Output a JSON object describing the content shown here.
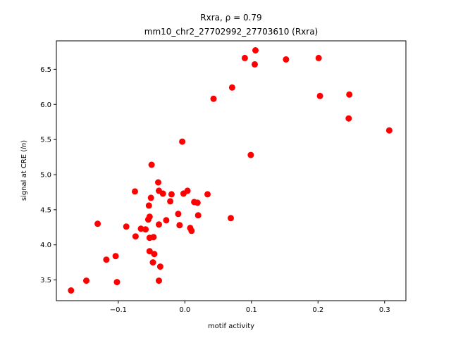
{
  "chart_data": {
    "type": "scatter",
    "title_line1_prefix": "Rxra, ",
    "title_line1_math": "ρ = 0.79",
    "title_line2": "mm10_chr2_27702992_27703610 (Rxra)",
    "xlabel": "motif activity",
    "ylabel_prefix": "signal at CRE (",
    "ylabel_italic": "ln",
    "ylabel_suffix": ")",
    "xlim": [
      -0.193,
      0.332
    ],
    "ylim": [
      3.205,
      6.905
    ],
    "xticks": [
      {
        "value": -0.1,
        "label": "−0.1"
      },
      {
        "value": 0.0,
        "label": "0.0"
      },
      {
        "value": 0.1,
        "label": "0.1"
      },
      {
        "value": 0.2,
        "label": "0.2"
      },
      {
        "value": 0.3,
        "label": "0.3"
      }
    ],
    "yticks": [
      {
        "value": 3.5,
        "label": "3.5"
      },
      {
        "value": 4.0,
        "label": "4.0"
      },
      {
        "value": 4.5,
        "label": "4.5"
      },
      {
        "value": 5.0,
        "label": "5.0"
      },
      {
        "value": 5.5,
        "label": "5.5"
      },
      {
        "value": 6.0,
        "label": "6.0"
      },
      {
        "value": 6.5,
        "label": "6.5"
      }
    ],
    "marker_color": "#ff0000",
    "grid": false,
    "points": [
      {
        "x": -0.171,
        "y": 3.35
      },
      {
        "x": -0.148,
        "y": 3.49
      },
      {
        "x": -0.102,
        "y": 3.47
      },
      {
        "x": -0.104,
        "y": 3.84
      },
      {
        "x": -0.118,
        "y": 3.79
      },
      {
        "x": -0.131,
        "y": 4.3
      },
      {
        "x": -0.088,
        "y": 4.26
      },
      {
        "x": -0.075,
        "y": 4.76
      },
      {
        "x": -0.074,
        "y": 4.12
      },
      {
        "x": -0.066,
        "y": 4.23
      },
      {
        "x": -0.059,
        "y": 4.22
      },
      {
        "x": -0.055,
        "y": 4.36
      },
      {
        "x": -0.054,
        "y": 4.56
      },
      {
        "x": -0.053,
        "y": 4.4
      },
      {
        "x": -0.053,
        "y": 4.1
      },
      {
        "x": -0.053,
        "y": 3.91
      },
      {
        "x": -0.051,
        "y": 4.67
      },
      {
        "x": -0.05,
        "y": 5.14
      },
      {
        "x": -0.048,
        "y": 3.75
      },
      {
        "x": -0.047,
        "y": 4.11
      },
      {
        "x": -0.046,
        "y": 3.87
      },
      {
        "x": -0.04,
        "y": 4.89
      },
      {
        "x": -0.039,
        "y": 4.77
      },
      {
        "x": -0.039,
        "y": 4.29
      },
      {
        "x": -0.039,
        "y": 3.49
      },
      {
        "x": -0.037,
        "y": 3.69
      },
      {
        "x": -0.033,
        "y": 4.73
      },
      {
        "x": -0.028,
        "y": 4.35
      },
      {
        "x": -0.022,
        "y": 4.62
      },
      {
        "x": -0.02,
        "y": 4.72
      },
      {
        "x": -0.01,
        "y": 4.44
      },
      {
        "x": -0.008,
        "y": 4.28
      },
      {
        "x": -0.004,
        "y": 5.47
      },
      {
        "x": -0.002,
        "y": 4.73
      },
      {
        "x": 0.004,
        "y": 4.77
      },
      {
        "x": 0.008,
        "y": 4.24
      },
      {
        "x": 0.01,
        "y": 4.2
      },
      {
        "x": 0.014,
        "y": 4.61
      },
      {
        "x": 0.019,
        "y": 4.6
      },
      {
        "x": 0.02,
        "y": 4.42
      },
      {
        "x": 0.034,
        "y": 4.72
      },
      {
        "x": 0.043,
        "y": 6.08
      },
      {
        "x": 0.069,
        "y": 4.38
      },
      {
        "x": 0.071,
        "y": 6.24
      },
      {
        "x": 0.09,
        "y": 6.66
      },
      {
        "x": 0.099,
        "y": 5.28
      },
      {
        "x": 0.105,
        "y": 6.57
      },
      {
        "x": 0.106,
        "y": 6.77
      },
      {
        "x": 0.152,
        "y": 6.64
      },
      {
        "x": 0.201,
        "y": 6.66
      },
      {
        "x": 0.203,
        "y": 6.12
      },
      {
        "x": 0.246,
        "y": 5.8
      },
      {
        "x": 0.247,
        "y": 6.14
      },
      {
        "x": 0.307,
        "y": 5.63
      }
    ]
  }
}
